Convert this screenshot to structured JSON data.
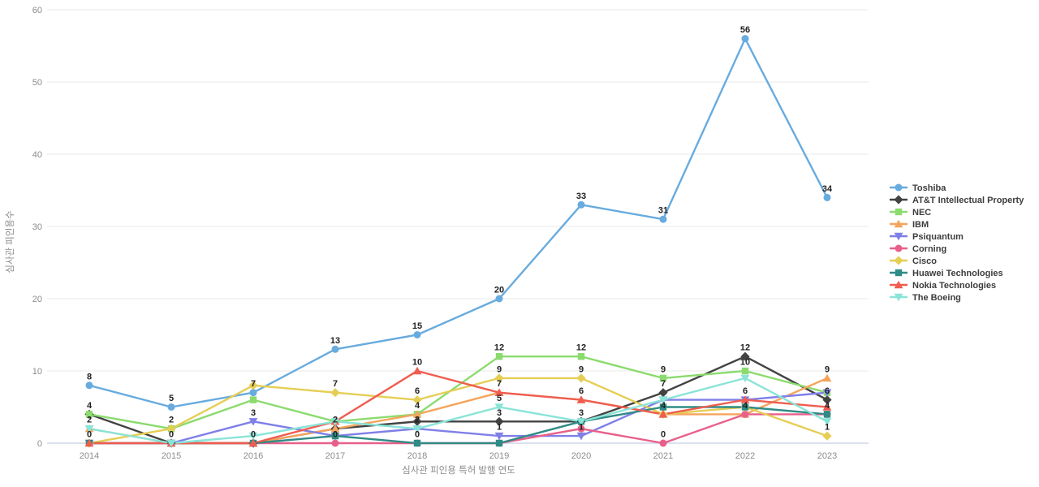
{
  "chart_data": {
    "type": "line",
    "title": "",
    "xlabel": "심사관 피인용 특허 발행 연도",
    "ylabel": "심사관 피인용수",
    "x": [
      2014,
      2015,
      2016,
      2017,
      2018,
      2019,
      2020,
      2021,
      2022,
      2023
    ],
    "ylim": [
      0,
      60
    ],
    "yticks": [
      0,
      10,
      20,
      30,
      40,
      50,
      60
    ],
    "grid": true,
    "legend_position": "right",
    "colors": {
      "gridline": "#e8e8e8",
      "zero_axis_line": "#b7c0dc",
      "tick_text": "#8c8c8c",
      "value_label_text": "#222222",
      "legend_text": "#3d3d3d"
    },
    "series": [
      {
        "name": "Toshiba",
        "color": "#68abde",
        "marker": "circle",
        "values": [
          8,
          5,
          7,
          13,
          15,
          20,
          33,
          31,
          56,
          34
        ],
        "show_label": [
          true,
          true,
          true,
          true,
          true,
          true,
          true,
          true,
          true,
          true
        ]
      },
      {
        "name": "AT&T Intellectual Property",
        "color": "#424242",
        "marker": "diamond",
        "values": [
          4,
          0,
          0,
          2,
          3,
          3,
          3,
          7,
          12,
          6
        ],
        "show_label": [
          false,
          true,
          true,
          false,
          false,
          true,
          true,
          true,
          true,
          true
        ]
      },
      {
        "name": "NEC",
        "color": "#8bdb6e",
        "marker": "square",
        "values": [
          4,
          2,
          6,
          3,
          4,
          12,
          12,
          9,
          10,
          7
        ],
        "show_label": [
          true,
          false,
          false,
          false,
          false,
          true,
          true,
          true,
          true,
          false
        ]
      },
      {
        "name": "IBM",
        "color": "#f5a45c",
        "marker": "triangle-up",
        "values": [
          2,
          0,
          0,
          2,
          4,
          7,
          6,
          4,
          4,
          9
        ],
        "show_label": [
          false,
          false,
          false,
          true,
          true,
          false,
          false,
          false,
          false,
          true
        ]
      },
      {
        "name": "Psiquantum",
        "color": "#7f7fe8",
        "marker": "triangle-down",
        "values": [
          0,
          0,
          3,
          1,
          2,
          1,
          1,
          6,
          6,
          7
        ],
        "show_label": [
          true,
          false,
          true,
          false,
          false,
          true,
          true,
          false,
          false,
          false
        ]
      },
      {
        "name": "Corning",
        "color": "#e8608a",
        "marker": "circle",
        "values": [
          0,
          0,
          0,
          0,
          0,
          0,
          2,
          0,
          4,
          4
        ],
        "show_label": [
          false,
          false,
          false,
          true,
          false,
          false,
          false,
          true,
          true,
          false
        ]
      },
      {
        "name": "Cisco",
        "color": "#e5ce55",
        "marker": "diamond",
        "values": [
          0,
          2,
          8,
          7,
          6,
          9,
          9,
          4,
          5,
          1
        ],
        "show_label": [
          false,
          true,
          false,
          true,
          true,
          true,
          true,
          false,
          false,
          true
        ]
      },
      {
        "name": "Huawei Technologies",
        "color": "#2f8b85",
        "marker": "square",
        "values": [
          0,
          0,
          0,
          1,
          0,
          0,
          3,
          5,
          5,
          4
        ],
        "show_label": [
          false,
          false,
          false,
          false,
          true,
          false,
          false,
          false,
          false,
          true
        ]
      },
      {
        "name": "Nokia Technologies",
        "color": "#ef5d50",
        "marker": "triangle-up",
        "values": [
          0,
          0,
          0,
          3,
          10,
          7,
          6,
          4,
          6,
          5
        ],
        "show_label": [
          false,
          false,
          false,
          false,
          true,
          true,
          true,
          true,
          true,
          false
        ]
      },
      {
        "name": "The Boeing",
        "color": "#8ae4d8",
        "marker": "triangle-down",
        "values": [
          2,
          0,
          1,
          3,
          2,
          5,
          3,
          6,
          9,
          3
        ],
        "show_label": [
          true,
          false,
          false,
          false,
          true,
          true,
          false,
          false,
          false,
          false
        ]
      }
    ]
  }
}
